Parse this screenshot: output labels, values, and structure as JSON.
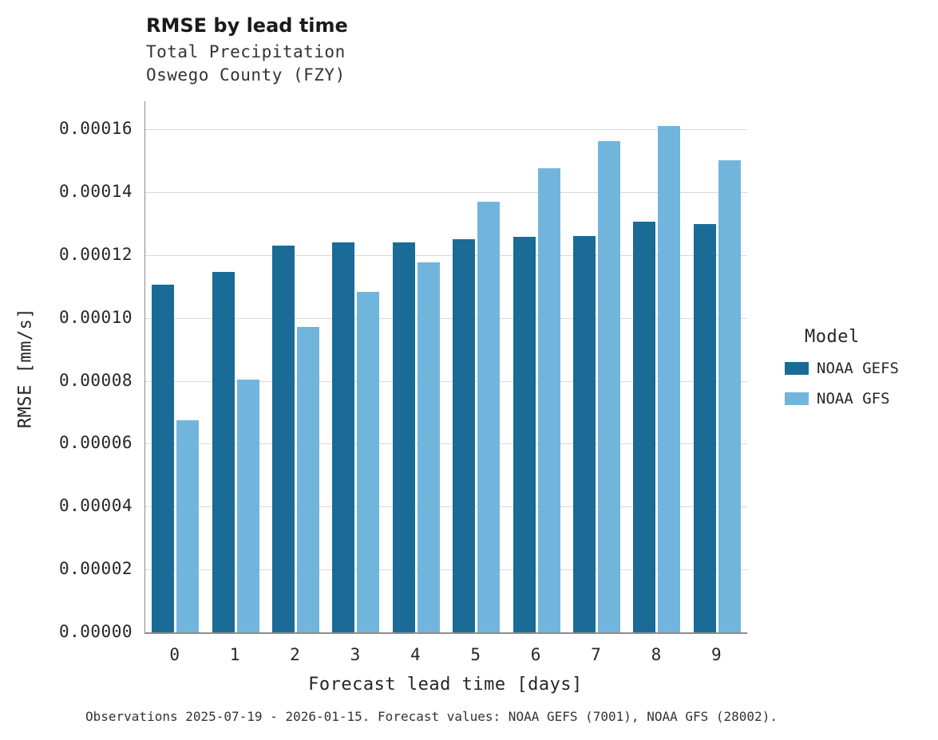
{
  "header": {
    "title": "RMSE by lead time",
    "subtitle_line1": "Total Precipitation",
    "subtitle_line2": "Oswego County (FZY)"
  },
  "chart_data": {
    "type": "bar",
    "title": "RMSE by lead time",
    "subtitle": [
      "Total Precipitation",
      "Oswego County (FZY)"
    ],
    "xlabel": "Forecast lead time [days]",
    "ylabel": "RMSE [mm/s]",
    "categories": [
      "0",
      "1",
      "2",
      "3",
      "4",
      "5",
      "6",
      "7",
      "8",
      "9"
    ],
    "series": [
      {
        "name": "NOAA GEFS",
        "color": "#1a6b96",
        "values": [
          0.0001105,
          0.0001145,
          0.000123,
          0.000124,
          0.000124,
          0.000125,
          0.0001257,
          0.000126,
          0.0001307,
          0.0001298
        ]
      },
      {
        "name": "NOAA GFS",
        "color": "#72b5dc",
        "values": [
          6.75e-05,
          8.05e-05,
          9.72e-05,
          0.0001082,
          0.0001177,
          0.000137,
          0.0001475,
          0.0001563,
          0.000161,
          0.0001502
        ]
      }
    ],
    "ylim": [
      0,
      0.000169
    ],
    "yticks": [
      0.0,
      2e-05,
      4e-05,
      6e-05,
      8e-05,
      0.0001,
      0.00012,
      0.00014,
      0.00016
    ],
    "ytick_decimals": 5,
    "grid": "horizontal",
    "legend_title": "Model",
    "legend_position": "right"
  },
  "legend": {
    "title": "Model",
    "items": [
      {
        "label": "NOAA GEFS"
      },
      {
        "label": "NOAA GFS"
      }
    ]
  },
  "caption": "Observations 2025-07-19 - 2026-01-15. Forecast values: NOAA GEFS (7001), NOAA GFS (28002)."
}
